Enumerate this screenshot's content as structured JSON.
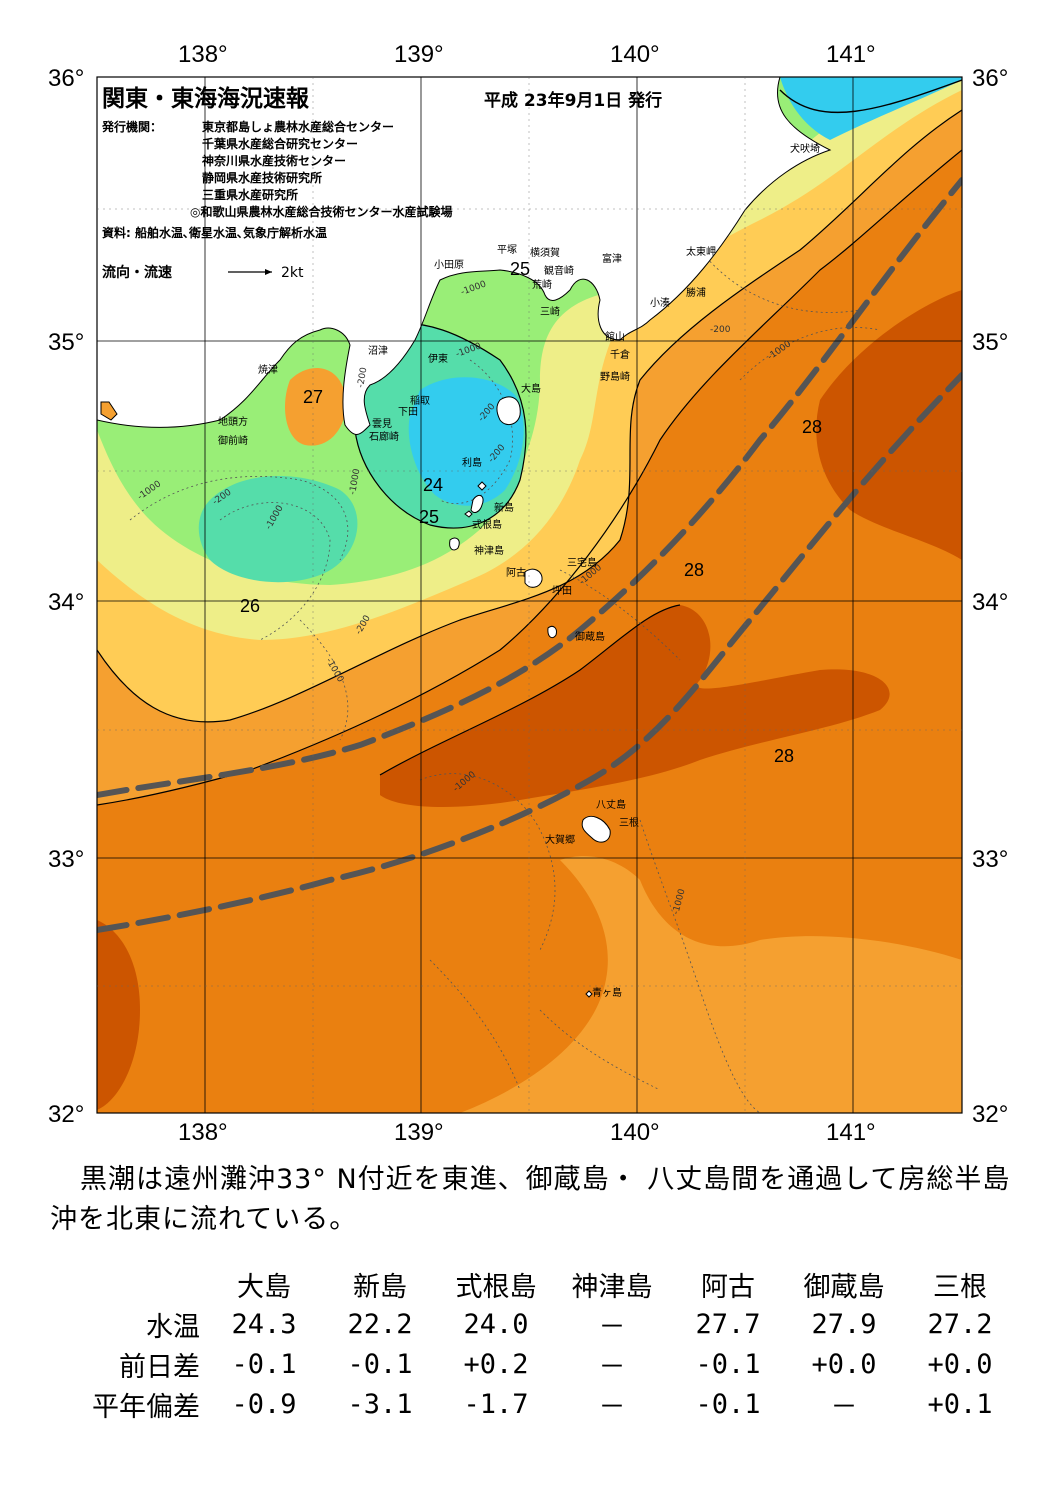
{
  "map": {
    "title": "関東・東海海況速報",
    "issue_date": "平成 23年9月1日 発行",
    "issuer_label": "発行機関：",
    "issuers": [
      "東京都島しょ農林水産総合センター",
      "千葉県水産総合研究センター",
      "神奈川県水産技術センター",
      "静岡県水産技術研究所",
      "三重県水産研究所",
      "◎和歌山県農林水産総合技術センター水産試験場"
    ],
    "source": "資料: 船舶水温､衛星水温､気象庁解析水温",
    "current_legend_label": "流向・流速",
    "current_legend_scale": "2kt",
    "lon_labels": [
      "138°",
      "139°",
      "140°",
      "141°"
    ],
    "lat_labels": [
      "36°",
      "35°",
      "34°",
      "33°",
      "32°"
    ],
    "isotherm_labels": [
      "27",
      "26",
      "24",
      "25",
      "25",
      "28",
      "28",
      "28"
    ],
    "depth_labels": [
      "-1000",
      "-200",
      "-1000",
      "-1000",
      "-200",
      "-200",
      "-1000",
      "-200",
      "-1000",
      "-1000",
      "-1000",
      "-1000",
      "-200",
      "-1000",
      "-200",
      "-1000"
    ],
    "places": {
      "inubosaki": "犬吠埼",
      "taitomisaki": "太東岬",
      "katsuura": "勝浦",
      "kominato": "小湊",
      "tomitsu": "富津",
      "yokosuka": "横須賀",
      "kannonzaki": "観音崎",
      "hiratsuka": "平塚",
      "odawara": "小田原",
      "arasaki": "荒崎",
      "misaki": "三崎",
      "tateyama": "館山",
      "chikura": "千倉",
      "nojimazaki": "野島崎",
      "numazu": "沼津",
      "ito": "伊東",
      "yaizu": "焼津",
      "jitokata": "地頭方",
      "omaezaki": "御前崎",
      "inatori": "稲取",
      "shimoda": "下田",
      "kumomi": "雲見",
      "irozaki": "石廊崎",
      "oshima": "大島",
      "toshima": "利島",
      "niijima": "新島",
      "shikinejima": "式根島",
      "kozushima": "神津島",
      "miyakejima": "三宅島",
      "ako": "阿古",
      "tsubota": "坪田",
      "mikurajima": "御蔵島",
      "hachijojima": "八丈島",
      "mine": "三根",
      "okago": "大賀郷",
      "aogashima": "青ヶ島"
    },
    "colors": {
      "t23": "#33ccee",
      "t24": "#55ddaa",
      "t25": "#99ee77",
      "t26": "#eeee88",
      "t27": "#ffcc55",
      "t27_5": "#f5a030",
      "t28": "#ea8010",
      "t29": "#cc5500",
      "kuroshio_axis": "#555555",
      "land": "#ffffff"
    }
  },
  "summary": "黒潮は遠州灘沖33° N付近を東進、御蔵島・ 八丈島間を通過して房総半島沖を北東に流れている。",
  "table": {
    "stations": [
      "大島",
      "新島",
      "式根島",
      "神津島",
      "阿古",
      "御蔵島",
      "三根"
    ],
    "rows": [
      {
        "label": "水温",
        "values": [
          "24.3",
          "22.2",
          "24.0",
          "－",
          "27.7",
          "27.9",
          "27.2"
        ]
      },
      {
        "label": "前日差",
        "values": [
          "-0.1",
          "-0.1",
          "+0.2",
          "－",
          "-0.1",
          "+0.0",
          "+0.0"
        ]
      },
      {
        "label": "平年偏差",
        "values": [
          "-0.9",
          "-3.1",
          "-1.7",
          "－",
          "-0.1",
          "－",
          "+0.1"
        ]
      }
    ]
  }
}
